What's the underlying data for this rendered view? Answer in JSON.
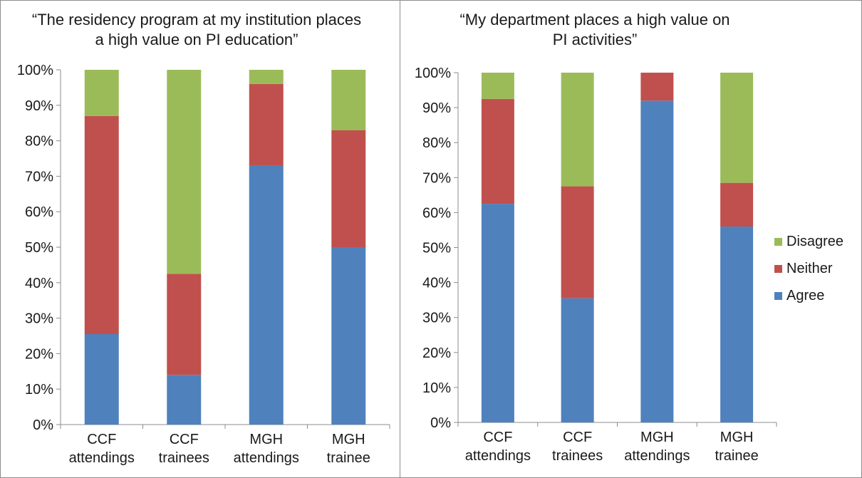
{
  "chart_data": [
    {
      "type": "bar",
      "stacked": true,
      "title": "“The residency program at my institution places\na high value on PI education”",
      "categories": [
        "CCF attendings",
        "CCF trainees",
        "MGH attendings",
        "MGH trainee"
      ],
      "category_lines": [
        [
          "CCF",
          "attendings"
        ],
        [
          "CCF",
          "trainees"
        ],
        [
          "MGH",
          "attendings"
        ],
        [
          "MGH",
          "trainee"
        ]
      ],
      "yticks": [
        "0%",
        "10%",
        "20%",
        "30%",
        "40%",
        "50%",
        "60%",
        "70%",
        "80%",
        "90%",
        "100%"
      ],
      "ylim": [
        0,
        100
      ],
      "series": [
        {
          "name": "Agree",
          "color": "#4f81bd",
          "values": [
            25.5,
            14,
            73,
            50
          ]
        },
        {
          "name": "Neither",
          "color": "#c0504d",
          "values": [
            61.5,
            28.5,
            23,
            33
          ]
        },
        {
          "name": "Disagree",
          "color": "#9bbb59",
          "values": [
            13,
            57.5,
            4,
            17
          ]
        }
      ]
    },
    {
      "type": "bar",
      "stacked": true,
      "title": "“My department places a high value on\nPI activities”",
      "categories": [
        "CCF attendings",
        "CCF trainees",
        "MGH attendings",
        "MGH trainee"
      ],
      "category_lines": [
        [
          "CCF",
          "attendings"
        ],
        [
          "CCF",
          "trainees"
        ],
        [
          "MGH",
          "attendings"
        ],
        [
          "MGH",
          "trainee"
        ]
      ],
      "yticks": [
        "0%",
        "10%",
        "20%",
        "30%",
        "40%",
        "50%",
        "60%",
        "70%",
        "80%",
        "90%",
        "100%"
      ],
      "ylim": [
        0,
        100
      ],
      "series": [
        {
          "name": "Agree",
          "color": "#4f81bd",
          "values": [
            62.5,
            35.5,
            92,
            56
          ]
        },
        {
          "name": "Neither",
          "color": "#c0504d",
          "values": [
            30,
            32,
            8,
            12.5
          ]
        },
        {
          "name": "Disagree",
          "color": "#9bbb59",
          "values": [
            7.5,
            32.5,
            0,
            31.5
          ]
        }
      ]
    }
  ],
  "legend": [
    {
      "label": "Disagree",
      "color": "#9bbb59"
    },
    {
      "label": "Neither",
      "color": "#c0504d"
    },
    {
      "label": "Agree",
      "color": "#4f81bd"
    }
  ]
}
